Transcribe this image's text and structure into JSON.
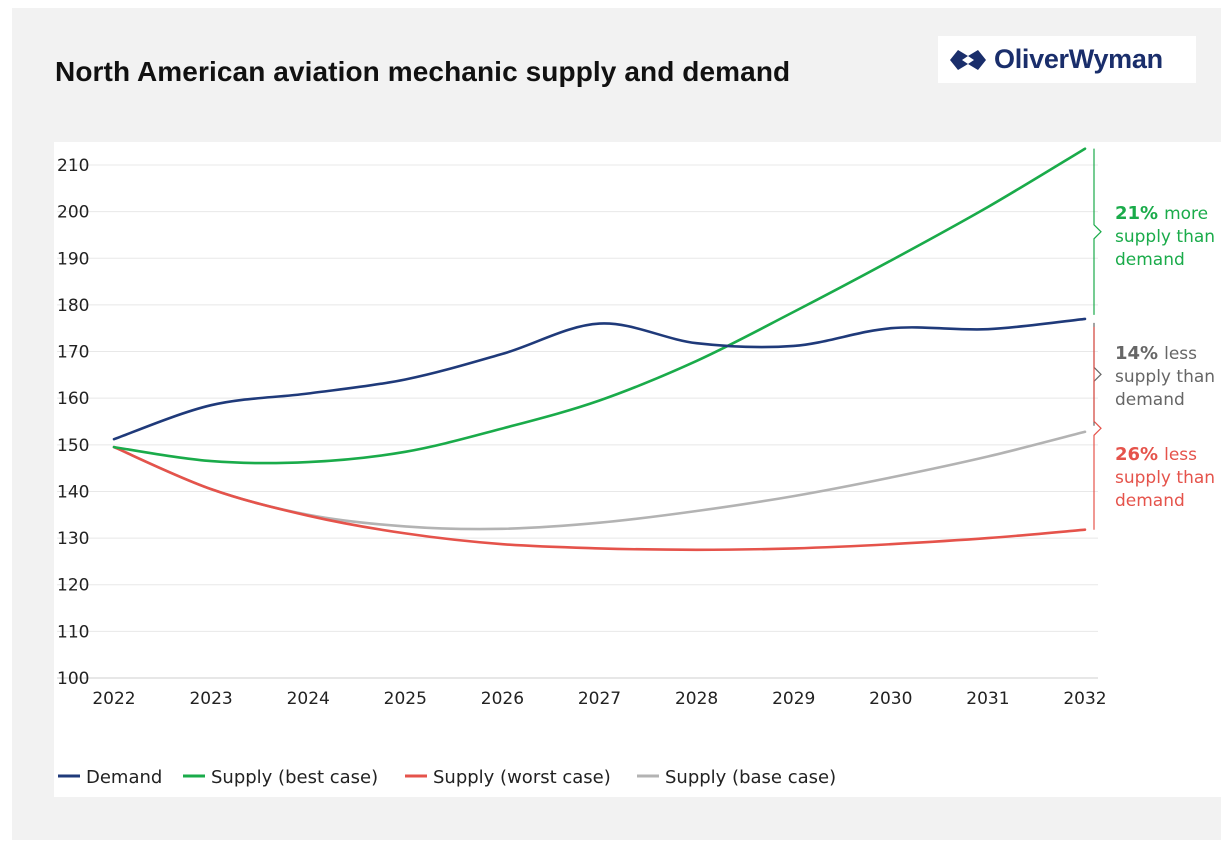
{
  "header": {
    "title": "North American aviation mechanic supply and demand",
    "logo_text": "OliverWyman"
  },
  "chart_data": {
    "type": "line",
    "title": "North American aviation mechanic supply and demand",
    "xlabel": "",
    "ylabel": "",
    "categories": [
      "2022",
      "2023",
      "2024",
      "2025",
      "2026",
      "2027",
      "2028",
      "2029",
      "2030",
      "2031",
      "2032"
    ],
    "ylim": [
      100,
      210
    ],
    "yticks": [
      100,
      110,
      120,
      130,
      140,
      150,
      160,
      170,
      180,
      190,
      200,
      210
    ],
    "grid": true,
    "legend": "bottom",
    "series": [
      {
        "name": "Demand",
        "color": "#1f3a7a",
        "values": [
          151.2,
          158.5,
          161.0,
          164.0,
          169.5,
          176.0,
          171.8,
          171.2,
          175.0,
          174.8,
          177.0
        ]
      },
      {
        "name": "Supply (best case)",
        "color": "#1aab4a",
        "values": [
          149.5,
          146.5,
          146.3,
          148.5,
          153.5,
          159.5,
          168.0,
          178.5,
          189.5,
          201.0,
          213.5
        ]
      },
      {
        "name": "Supply (worst case)",
        "color": "#e5534b",
        "values": [
          149.5,
          140.5,
          134.8,
          131.0,
          128.7,
          127.8,
          127.5,
          127.8,
          128.7,
          130.0,
          131.8
        ]
      },
      {
        "name": "Supply (base case)",
        "color": "#b3b3b3",
        "values": [
          149.5,
          140.5,
          135.0,
          132.5,
          132.0,
          133.3,
          135.8,
          139.0,
          143.0,
          147.5,
          152.8
        ]
      }
    ],
    "annotations": [
      {
        "pct": "21%",
        "text": "more",
        "lines": [
          "supply than",
          "demand"
        ],
        "color": "#1aab4a"
      },
      {
        "pct": "14%",
        "text": "less",
        "lines": [
          "supply than",
          "demand"
        ],
        "color": "#666666"
      },
      {
        "pct": "26%",
        "text": "less",
        "lines": [
          "supply than",
          "demand"
        ],
        "color": "#e5534b"
      }
    ]
  }
}
